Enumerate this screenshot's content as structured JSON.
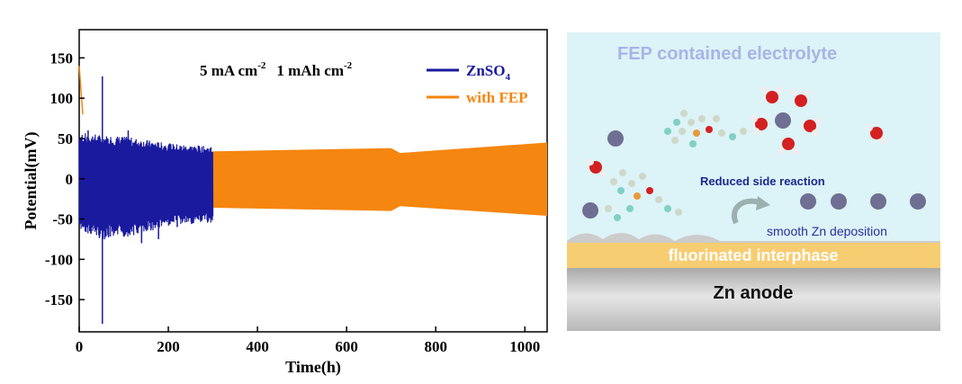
{
  "chart_data": {
    "type": "line",
    "xlabel": "Time(h)",
    "ylabel": "Potential(mV)",
    "xlim": [
      0,
      1050
    ],
    "ylim": [
      -190,
      185
    ],
    "xticks": [
      0,
      200,
      400,
      600,
      800,
      1000
    ],
    "yticks": [
      150,
      100,
      50,
      0,
      -50,
      -100,
      -150
    ],
    "xtick_labels": [
      "0",
      "200",
      "400",
      "600",
      "800",
      "1000"
    ],
    "ytick_labels": [
      "150",
      "100",
      "50",
      "0",
      "-50",
      "-100",
      "-150"
    ],
    "annotation": {
      "rate": "5 mA cm",
      "rate_exp": "-2",
      "capacity": "1 mAh cm",
      "capacity_exp": "-2"
    },
    "legend_position": "top-right",
    "series": [
      {
        "name_base": "ZnSO",
        "name_sub": "4",
        "color": "#1a1a9e",
        "x_end": 300,
        "band_upper": [
          [
            0,
            55
          ],
          [
            50,
            52
          ],
          [
            100,
            50
          ],
          [
            150,
            46
          ],
          [
            200,
            42
          ],
          [
            250,
            40
          ],
          [
            300,
            38
          ]
        ],
        "band_lower": [
          [
            0,
            -60
          ],
          [
            50,
            -72
          ],
          [
            100,
            -70
          ],
          [
            150,
            -64
          ],
          [
            200,
            -56
          ],
          [
            250,
            -54
          ],
          [
            300,
            -52
          ]
        ],
        "spikes": [
          [
            52,
            127
          ],
          [
            52,
            -180
          ],
          [
            110,
            60
          ],
          [
            140,
            -80
          ],
          [
            178,
            -75
          ],
          [
            20,
            60
          ],
          [
            220,
            -60
          ]
        ]
      },
      {
        "name": "with FEP",
        "color": "#f5860f",
        "x_start": 300,
        "x_end": 1050,
        "band_upper": [
          [
            300,
            34
          ],
          [
            700,
            38
          ],
          [
            720,
            32
          ],
          [
            1050,
            45
          ]
        ],
        "band_lower": [
          [
            300,
            -36
          ],
          [
            700,
            -40
          ],
          [
            720,
            -34
          ],
          [
            1050,
            -46
          ]
        ]
      }
    ]
  },
  "schematic": {
    "title": "FEP contained electrolyte",
    "reduced_label": "Reduced side reaction",
    "deposition_label": "smooth Zn deposition",
    "interphase_label": "fluorinated interphase",
    "anode_label": "Zn anode",
    "colors": {
      "background": "#dcf3f7",
      "interphase": "#f7cd72",
      "anode": "#bdbdbd",
      "zn_atom": "#6e6f93",
      "oxygen": "#d42020",
      "title": "#a8b4e6",
      "reduced_text": "#1b2b8f"
    }
  }
}
